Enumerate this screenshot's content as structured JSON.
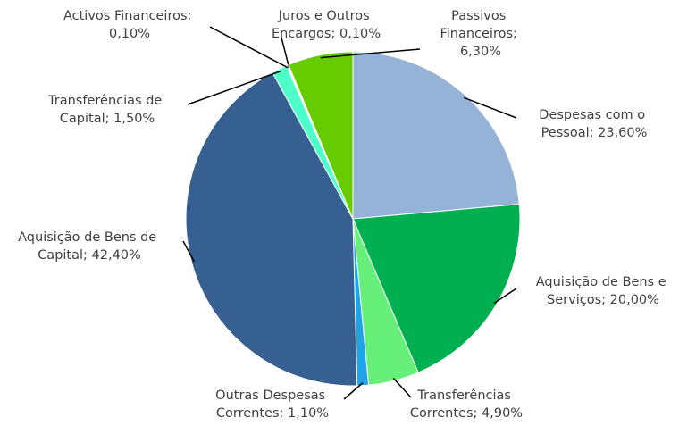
{
  "chart_data": {
    "type": "pie",
    "values": [
      23.6,
      20.0,
      4.9,
      1.1,
      42.4,
      1.5,
      0.1,
      0.1,
      6.3
    ],
    "value_labels": [
      "Despesas com o Pessoal; 23,60%",
      "Aquisição de Bens e Serviços; 20,00%",
      "Transferências Correntes; 4,90%",
      "Outras Despesas Correntes; 1,10%",
      "Aquisição de Bens de Capital; 42,40%",
      "Transferências de Capital; 1,50%",
      "Activos Financeiros; 0,10%",
      "Juros e Outros Encargos; 0,10%",
      "Passivos Financeiros; 6,30%"
    ],
    "colors": [
      "#95b3d7",
      "#00b050",
      "#66f07a",
      "#1fa2e6",
      "#376092",
      "#4dffc8",
      "#e07070",
      "#c8a0c8",
      "#66cc00"
    ]
  }
}
